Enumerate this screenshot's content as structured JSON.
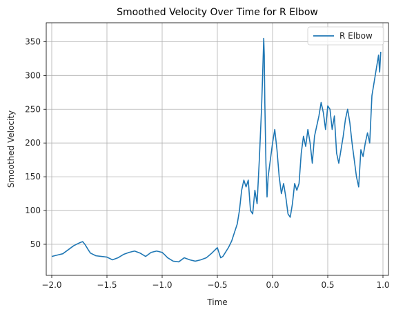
{
  "chart_data": {
    "type": "line",
    "title": "Smoothed Velocity Over Time for R Elbow",
    "xlabel": "Time",
    "ylabel": "Smoothed Velocity",
    "xlim": [
      -2.05,
      1.05
    ],
    "ylim": [
      4,
      378
    ],
    "xticks": [
      -2.0,
      -1.5,
      -1.0,
      -0.5,
      0.0,
      0.5,
      1.0
    ],
    "xtick_labels": [
      "−2.0",
      "−1.5",
      "−1.0",
      "−0.5",
      "0.0",
      "0.5",
      "1.0"
    ],
    "yticks": [
      50,
      100,
      150,
      200,
      250,
      300,
      350
    ],
    "ytick_labels": [
      "50",
      "100",
      "150",
      "200",
      "250",
      "300",
      "350"
    ],
    "grid": true,
    "legend_position": "top-right",
    "colors": {
      "series": "#1f77b4"
    },
    "series": [
      {
        "name": "R Elbow",
        "x": [
          -2.0,
          -1.95,
          -1.9,
          -1.85,
          -1.8,
          -1.75,
          -1.72,
          -1.7,
          -1.67,
          -1.65,
          -1.6,
          -1.55,
          -1.5,
          -1.45,
          -1.4,
          -1.35,
          -1.3,
          -1.25,
          -1.2,
          -1.15,
          -1.1,
          -1.05,
          -1.0,
          -0.98,
          -0.95,
          -0.9,
          -0.85,
          -0.8,
          -0.75,
          -0.7,
          -0.65,
          -0.6,
          -0.55,
          -0.5,
          -0.47,
          -0.45,
          -0.4,
          -0.37,
          -0.35,
          -0.32,
          -0.3,
          -0.28,
          -0.26,
          -0.24,
          -0.22,
          -0.2,
          -0.18,
          -0.16,
          -0.14,
          -0.12,
          -0.1,
          -0.09,
          -0.08,
          -0.075,
          -0.07,
          -0.06,
          -0.05,
          -0.04,
          -0.02,
          0.0,
          0.02,
          0.04,
          0.06,
          0.08,
          0.1,
          0.12,
          0.14,
          0.16,
          0.18,
          0.2,
          0.22,
          0.24,
          0.26,
          0.28,
          0.3,
          0.32,
          0.34,
          0.36,
          0.38,
          0.4,
          0.42,
          0.44,
          0.46,
          0.48,
          0.5,
          0.52,
          0.54,
          0.56,
          0.58,
          0.6,
          0.62,
          0.64,
          0.66,
          0.68,
          0.7,
          0.72,
          0.74,
          0.76,
          0.78,
          0.8,
          0.82,
          0.84,
          0.86,
          0.88,
          0.9,
          0.92,
          0.94,
          0.96,
          0.97,
          0.98
        ],
        "values": [
          32,
          34,
          36,
          42,
          48,
          52,
          54,
          50,
          42,
          37,
          33,
          32,
          31,
          27,
          30,
          35,
          38,
          40,
          37,
          32,
          38,
          40,
          38,
          35,
          30,
          25,
          24,
          30,
          27,
          25,
          27,
          30,
          37,
          45,
          30,
          32,
          45,
          55,
          65,
          80,
          100,
          130,
          145,
          135,
          145,
          100,
          95,
          130,
          110,
          175,
          250,
          300,
          355,
          330,
          260,
          170,
          120,
          150,
          175,
          200,
          220,
          190,
          150,
          125,
          140,
          120,
          95,
          90,
          110,
          140,
          130,
          140,
          185,
          210,
          195,
          220,
          200,
          170,
          210,
          225,
          240,
          260,
          245,
          220,
          255,
          250,
          220,
          240,
          185,
          170,
          190,
          210,
          235,
          250,
          230,
          200,
          175,
          150,
          135,
          190,
          180,
          200,
          215,
          200,
          270,
          290,
          310,
          330,
          305,
          335
        ]
      }
    ]
  }
}
